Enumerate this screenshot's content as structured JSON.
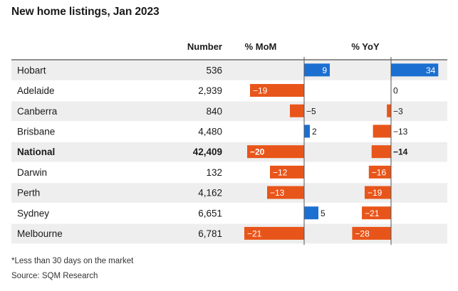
{
  "title": "New home listings, Jan 2023",
  "footnote": "*Less than 30 days on the market",
  "source": "Source: SQM Research",
  "chart_data": {
    "type": "table",
    "columns": [
      "",
      "Number",
      "% MoM",
      "% YoY"
    ],
    "rows": [
      {
        "city": "Hobart",
        "number": "536",
        "mom": 9,
        "yoy": 34,
        "bold": false
      },
      {
        "city": "Adelaide",
        "number": "2,939",
        "mom": -19,
        "yoy": 0,
        "bold": false
      },
      {
        "city": "Canberra",
        "number": "840",
        "mom": -5,
        "yoy": -3,
        "bold": false
      },
      {
        "city": "Brisbane",
        "number": "4,480",
        "mom": 2,
        "yoy": -13,
        "bold": false
      },
      {
        "city": "National",
        "number": "42,409",
        "mom": -20,
        "yoy": -14,
        "bold": true
      },
      {
        "city": "Darwin",
        "number": "132",
        "mom": -12,
        "yoy": -16,
        "bold": false
      },
      {
        "city": "Perth",
        "number": "4,162",
        "mom": -13,
        "yoy": -19,
        "bold": false
      },
      {
        "city": "Sydney",
        "number": "6,651",
        "mom": 5,
        "yoy": -21,
        "bold": false
      },
      {
        "city": "Melbourne",
        "number": "6,781",
        "mom": -21,
        "yoy": -28,
        "bold": false
      }
    ],
    "colors": {
      "positive": "#1b6fd1",
      "negative": "#e8551a",
      "row_stripe": "#eeeeee",
      "rule": "#222222",
      "axis": "#555555"
    }
  }
}
